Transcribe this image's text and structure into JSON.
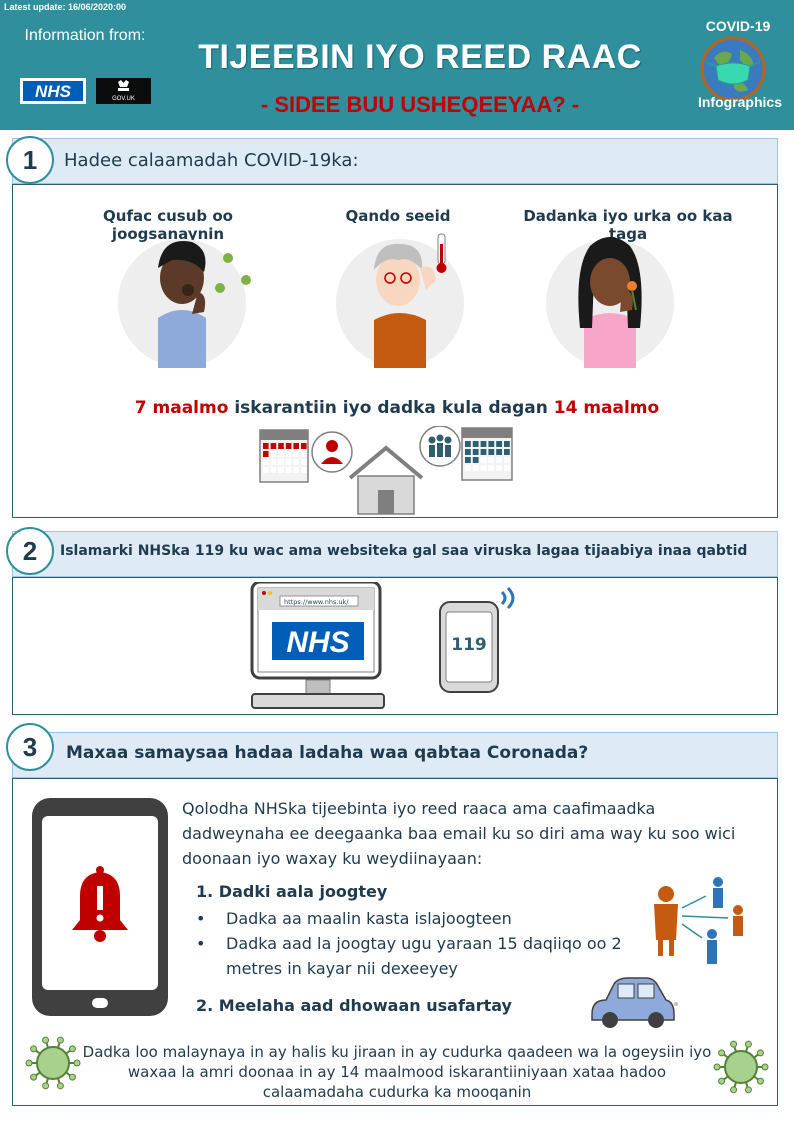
{
  "header": {
    "latest_update": "Latest update: 16/06/2020:00",
    "info_from": "Information from:",
    "nhs_logo_text": "NHS",
    "gov_logo_text": "GOV.UK",
    "title": "TIJEEBIN IYO REED RAAC",
    "subtitle": "- SIDEE BUU USHEQEEYAA? -",
    "covid_label": "COVID-19",
    "infographics_label": "Infographics",
    "color_teal": "#2f8f9c",
    "color_red": "#c00000"
  },
  "section1": {
    "number": "1",
    "title": "Hadee calaamadah COVID-19ka:",
    "symptoms": [
      {
        "label": "Qufac cusub oo joogsanaynin"
      },
      {
        "label": "Qando seeid"
      },
      {
        "label": "Dadanka iyo urka oo kaa taga"
      }
    ],
    "isolation": {
      "days_a": "7 maalmo",
      "middle": " iskarantiin iyo dadka kula dagan ",
      "days_b": "14 maalmo"
    }
  },
  "section2": {
    "number": "2",
    "title": "Islamarki NHSka 119 ku wac ama websiteka gal saa viruska lagaa tijaabiya inaa qabtid",
    "url": "https://www.nhs.uk/",
    "screen_logo": "NHS",
    "phone_number": "119"
  },
  "section3": {
    "number": "3",
    "title": "Maxaa samaysaa hadaa ladaha waa qabtaa Coronada?",
    "intro": "Qolodha NHSka tijeebinta iyo reed raaca ama caafimaadka dadweynaha ee deegaanka baa email ku so diri ama way ku soo wici doonaan iyo waxay ku weydiinayaan:",
    "heading1": "1. Dadki aala joogtey",
    "bullets": [
      "Dadka aa maalin kasta islajoogteen",
      "Dadka aad la joogtay ugu yaraan 15 daqiiqo oo 2 metres  in kayar nii dexeeyey"
    ],
    "heading2": "2. Meelaha aad dhowaan usafartay"
  },
  "footer": {
    "text": "Dadka loo malaynaya in ay halis ku jiraan in ay cudurka qaadeen wa la ogeysiin iyo waxaa la amri doonaa in ay 14 maalmood iskarantiiniyaan xataa hadoo calaamadaha cudurka ka mooqanin"
  }
}
